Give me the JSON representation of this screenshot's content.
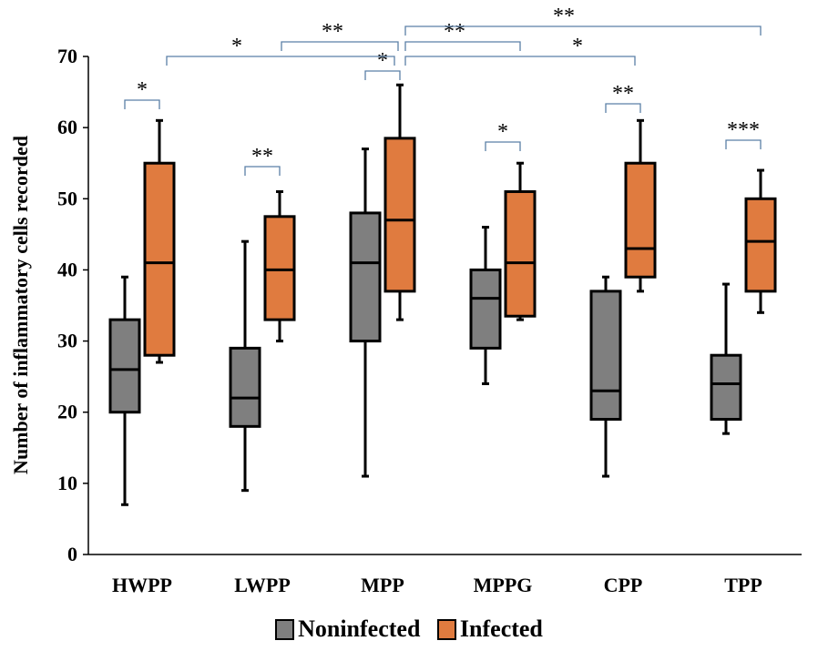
{
  "chart_data": {
    "type": "boxplot",
    "title": "",
    "xlabel": "",
    "ylabel": "Number of inflammatory cells recorded",
    "ylim": [
      0,
      70
    ],
    "yticks": [
      0,
      10,
      20,
      30,
      40,
      50,
      60,
      70
    ],
    "grid": false,
    "legend_position": "bottom",
    "categories": [
      "HWPP",
      "LWPP",
      "MPP",
      "MPPG",
      "CPP",
      "TPP"
    ],
    "series": [
      {
        "name": "Noninfected",
        "color": "#7f7f7f",
        "boxes": [
          {
            "min": 7,
            "q1": 20,
            "median": 26,
            "q3": 33,
            "max": 39
          },
          {
            "min": 9,
            "q1": 18,
            "median": 22,
            "q3": 29,
            "max": 44
          },
          {
            "min": 11,
            "q1": 30,
            "median": 41,
            "q3": 48,
            "max": 57
          },
          {
            "min": 24,
            "q1": 29,
            "median": 36,
            "q3": 40,
            "max": 46
          },
          {
            "min": 11,
            "q1": 19,
            "median": 23,
            "q3": 37,
            "max": 39
          },
          {
            "min": 17,
            "q1": 19,
            "median": 24,
            "q3": 28,
            "max": 38
          }
        ]
      },
      {
        "name": "Infected",
        "color": "#e07b3f",
        "boxes": [
          {
            "min": 27,
            "q1": 28,
            "median": 41,
            "q3": 55,
            "max": 61
          },
          {
            "min": 30,
            "q1": 33,
            "median": 40,
            "q3": 47.5,
            "max": 51
          },
          {
            "min": 33,
            "q1": 37,
            "median": 47,
            "q3": 58.5,
            "max": 66
          },
          {
            "min": 33,
            "q1": 33.5,
            "median": 41,
            "q3": 51,
            "max": 55
          },
          {
            "min": 37,
            "q1": 39,
            "median": 43,
            "q3": 55,
            "max": 61
          },
          {
            "min": 34,
            "q1": 37,
            "median": 44,
            "q3": 50,
            "max": 54
          }
        ]
      }
    ],
    "annotations": [
      {
        "label": "*",
        "between": [
          "HWPP Noninfected",
          "HWPP Infected"
        ]
      },
      {
        "label": "**",
        "between": [
          "LWPP Noninfected",
          "LWPP Infected"
        ]
      },
      {
        "label": "*",
        "between": [
          "MPP Noninfected",
          "MPP Infected"
        ]
      },
      {
        "label": "*",
        "between": [
          "MPPG Noninfected",
          "MPPG Infected"
        ]
      },
      {
        "label": "**",
        "between": [
          "CPP Noninfected",
          "CPP Infected"
        ]
      },
      {
        "label": "***",
        "between": [
          "TPP Noninfected",
          "TPP Infected"
        ]
      },
      {
        "label": "*",
        "between": [
          "HWPP Infected",
          "MPP Infected"
        ]
      },
      {
        "label": "**",
        "between": [
          "LWPP Infected",
          "MPP Infected"
        ]
      },
      {
        "label": "**",
        "between": [
          "MPP Infected",
          "MPPG Infected"
        ]
      },
      {
        "label": "*",
        "between": [
          "MPP Infected",
          "CPP Infected"
        ]
      },
      {
        "label": "**",
        "between": [
          "MPP Infected",
          "TPP Infected"
        ]
      }
    ]
  }
}
